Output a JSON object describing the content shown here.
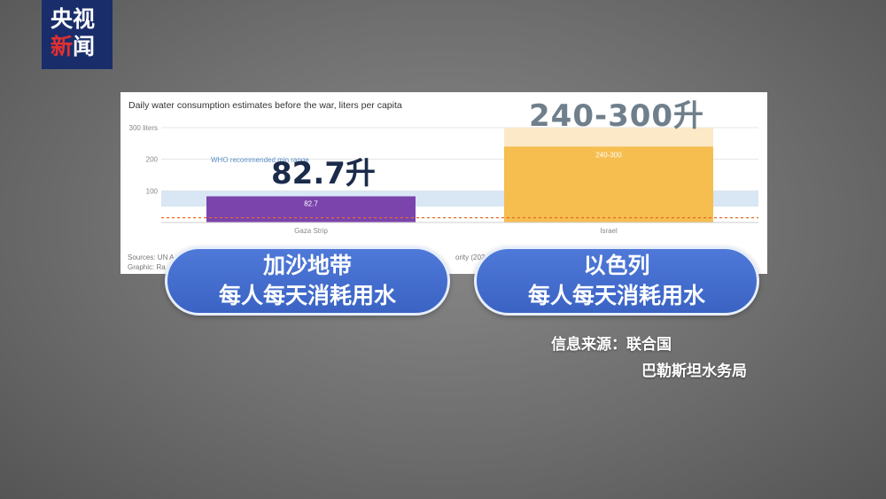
{
  "logo": {
    "line1": "央视",
    "line2_red": "新",
    "line2_rest": "闻"
  },
  "chart_data": {
    "type": "bar",
    "title": "Daily water consumption estimates before the war, liters per capita",
    "categories": [
      "Gaza Strip",
      "Israel"
    ],
    "values": [
      82.7,
      270
    ],
    "range_israel": [
      240,
      300
    ],
    "data_labels": [
      "82.7",
      "240-300"
    ],
    "y_ticks": [
      "300 liters",
      "200",
      "100"
    ],
    "ylim": [
      0,
      300
    ],
    "who_band": [
      50,
      100
    ],
    "who_label": "WHO recommended min range",
    "reference_line": 15,
    "colors": {
      "gaza": "#7b44ad",
      "israel": "#f5be4f",
      "israel_range": "#fce9c8",
      "who_band": "#d9e6f4",
      "ref_line": "#e8692a"
    }
  },
  "sources_line1": "Sources: UN A",
  "sources_line1b": "ority (2021 G",
  "sources_line2": "Graphic: Ra",
  "overlay": {
    "gaza_value": "82.7升",
    "israel_value": "240-300升"
  },
  "pills": {
    "gaza": {
      "line1": "加沙地带",
      "line2": "每人每天消耗用水"
    },
    "israel": {
      "line1": "以色列",
      "line2": "每人每天消耗用水"
    }
  },
  "source_note": {
    "line1": "信息来源：联合国",
    "line2": "巴勒斯坦水务局"
  }
}
